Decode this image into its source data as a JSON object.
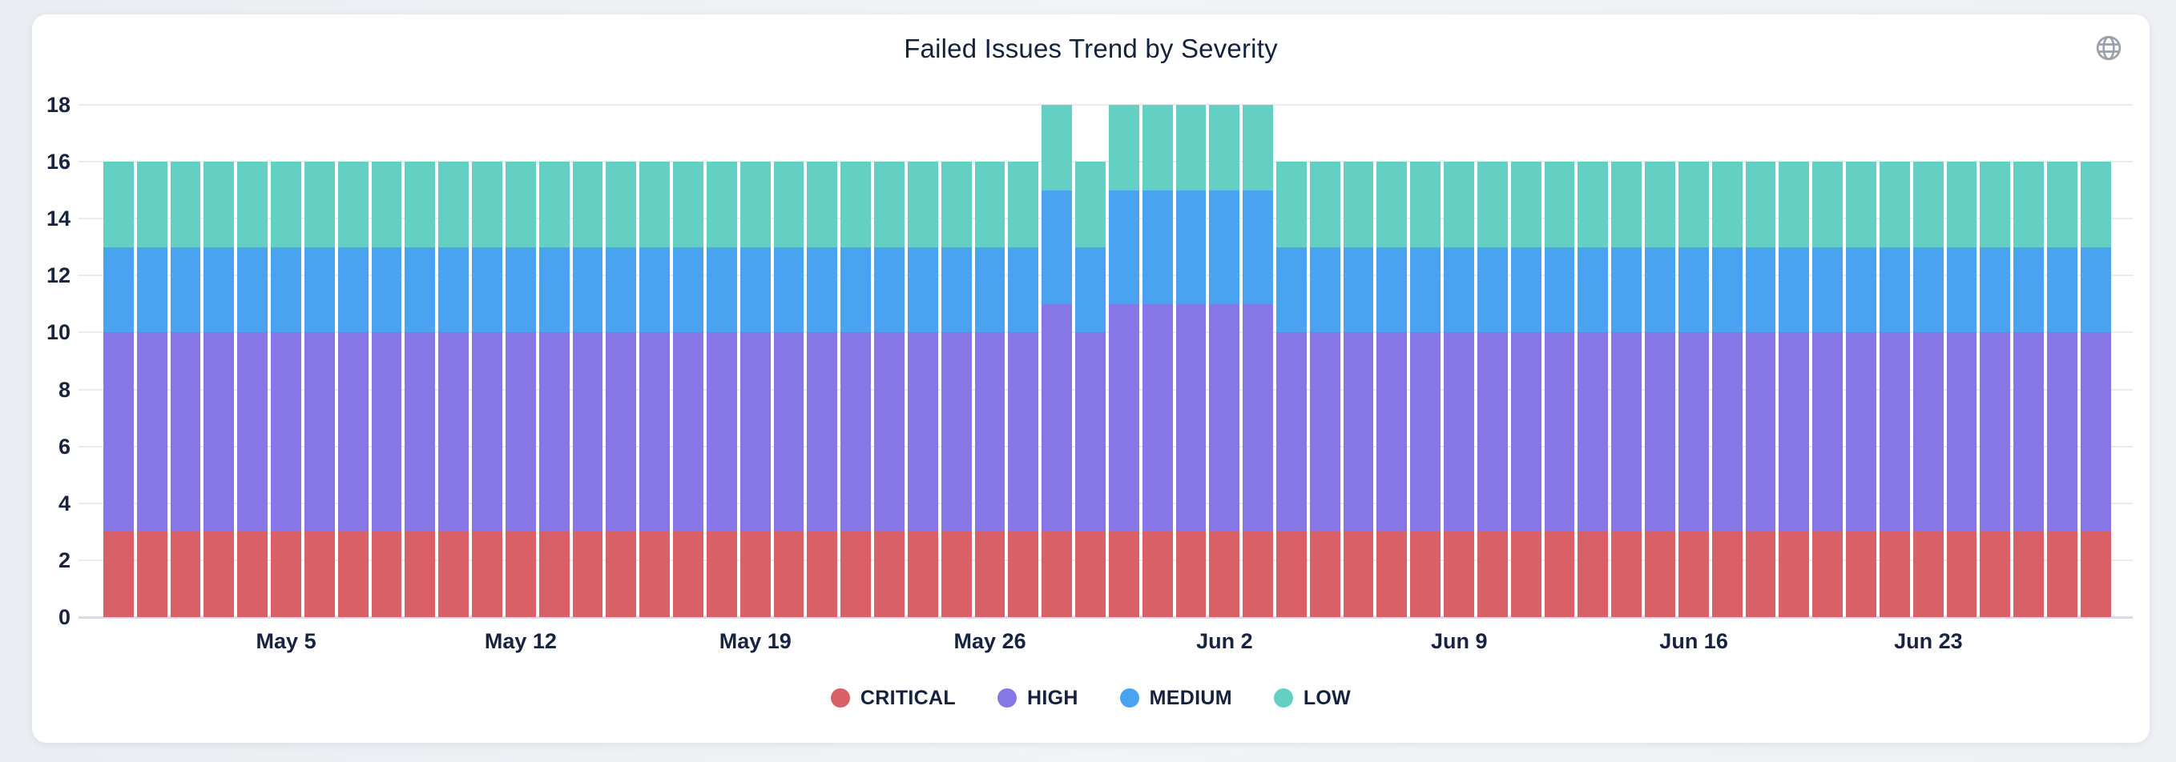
{
  "page": {
    "background": "#eef0f4",
    "card_background": "#ffffff"
  },
  "header": {
    "title": "Failed Issues Trend by Severity"
  },
  "icons": {
    "top_right": "globe-icon",
    "color": "#9aa1ab"
  },
  "colors": {
    "critical": "#d96066",
    "high": "#8776e6",
    "medium": "#4aa3f0",
    "low": "#64d0c4",
    "text": "#17233f",
    "grid": "#ececee",
    "axis_line": "#d6dce8"
  },
  "chart_data": {
    "type": "bar",
    "stacked": true,
    "title": "Failed Issues Trend by Severity",
    "xlabel": "",
    "ylabel": "",
    "ylim": [
      0,
      18
    ],
    "y_ticks": [
      0,
      2,
      4,
      6,
      8,
      10,
      12,
      14,
      16,
      18
    ],
    "grid": true,
    "legend_position": "bottom",
    "categories": [
      "Apr 30",
      "May 1",
      "May 2",
      "May 3",
      "May 4",
      "May 5",
      "May 6",
      "May 7",
      "May 8",
      "May 9",
      "May 10",
      "May 11",
      "May 12",
      "May 13",
      "May 14",
      "May 15",
      "May 16",
      "May 17",
      "May 18",
      "May 19",
      "May 20",
      "May 21",
      "May 22",
      "May 23",
      "May 24",
      "May 25",
      "May 26",
      "May 27",
      "May 28",
      "May 29",
      "May 30",
      "May 31",
      "Jun 1",
      "Jun 2",
      "Jun 3",
      "Jun 4",
      "Jun 5",
      "Jun 6",
      "Jun 7",
      "Jun 8",
      "Jun 9",
      "Jun 10",
      "Jun 11",
      "Jun 12",
      "Jun 13",
      "Jun 14",
      "Jun 15",
      "Jun 16",
      "Jun 17",
      "Jun 18",
      "Jun 19",
      "Jun 20",
      "Jun 21",
      "Jun 22",
      "Jun 23",
      "Jun 24",
      "Jun 25",
      "Jun 26",
      "Jun 27",
      "Jun 28"
    ],
    "x_ticks": [
      {
        "index": 5,
        "label": "May 5"
      },
      {
        "index": 12,
        "label": "May 12"
      },
      {
        "index": 19,
        "label": "May 19"
      },
      {
        "index": 26,
        "label": "May 26"
      },
      {
        "index": 33,
        "label": "Jun 2"
      },
      {
        "index": 40,
        "label": "Jun 9"
      },
      {
        "index": 47,
        "label": "Jun 16"
      },
      {
        "index": 54,
        "label": "Jun 23"
      }
    ],
    "series": [
      {
        "name": "CRITICAL",
        "color": "#d96066",
        "values": [
          3,
          3,
          3,
          3,
          3,
          3,
          3,
          3,
          3,
          3,
          3,
          3,
          3,
          3,
          3,
          3,
          3,
          3,
          3,
          3,
          3,
          3,
          3,
          3,
          3,
          3,
          3,
          3,
          3,
          3,
          3,
          3,
          3,
          3,
          3,
          3,
          3,
          3,
          3,
          3,
          3,
          3,
          3,
          3,
          3,
          3,
          3,
          3,
          3,
          3,
          3,
          3,
          3,
          3,
          3,
          3,
          3,
          3,
          3,
          3
        ]
      },
      {
        "name": "HIGH",
        "color": "#8776e6",
        "values": [
          7,
          7,
          7,
          7,
          7,
          7,
          7,
          7,
          7,
          7,
          7,
          7,
          7,
          7,
          7,
          7,
          7,
          7,
          7,
          7,
          7,
          7,
          7,
          7,
          7,
          7,
          7,
          7,
          8,
          7,
          8,
          8,
          8,
          8,
          8,
          7,
          7,
          7,
          7,
          7,
          7,
          7,
          7,
          7,
          7,
          7,
          7,
          7,
          7,
          7,
          7,
          7,
          7,
          7,
          7,
          7,
          7,
          7,
          7,
          7
        ]
      },
      {
        "name": "MEDIUM",
        "color": "#4aa3f0",
        "values": [
          3,
          3,
          3,
          3,
          3,
          3,
          3,
          3,
          3,
          3,
          3,
          3,
          3,
          3,
          3,
          3,
          3,
          3,
          3,
          3,
          3,
          3,
          3,
          3,
          3,
          3,
          3,
          3,
          4,
          3,
          4,
          4,
          4,
          4,
          4,
          3,
          3,
          3,
          3,
          3,
          3,
          3,
          3,
          3,
          3,
          3,
          3,
          3,
          3,
          3,
          3,
          3,
          3,
          3,
          3,
          3,
          3,
          3,
          3,
          3
        ]
      },
      {
        "name": "LOW",
        "color": "#64d0c4",
        "values": [
          3,
          3,
          3,
          3,
          3,
          3,
          3,
          3,
          3,
          3,
          3,
          3,
          3,
          3,
          3,
          3,
          3,
          3,
          3,
          3,
          3,
          3,
          3,
          3,
          3,
          3,
          3,
          3,
          3,
          3,
          3,
          3,
          3,
          3,
          3,
          3,
          3,
          3,
          3,
          3,
          3,
          3,
          3,
          3,
          3,
          3,
          3,
          3,
          3,
          3,
          3,
          3,
          3,
          3,
          3,
          3,
          3,
          3,
          3,
          3
        ]
      }
    ]
  },
  "legend": {
    "items": [
      "CRITICAL",
      "HIGH",
      "MEDIUM",
      "LOW"
    ]
  }
}
